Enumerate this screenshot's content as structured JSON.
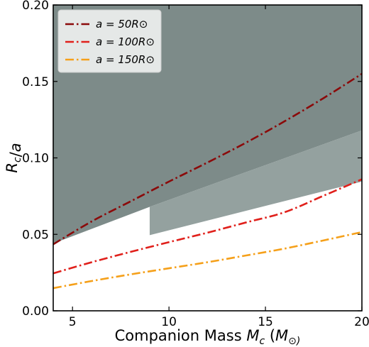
{
  "chart_data": {
    "type": "line",
    "xlabel": "Companion Mass M_c (M_⊙)",
    "ylabel": "R_c/a",
    "xlim": [
      4,
      20
    ],
    "ylim": [
      0,
      0.2
    ],
    "x_ticks": [
      5,
      10,
      15,
      20
    ],
    "x_tick_labels": [
      "5",
      "10",
      "15",
      "20"
    ],
    "y_ticks": [
      0,
      0.05,
      0.1,
      0.15,
      0.2
    ],
    "y_tick_labels": [
      "0.00",
      "0.05",
      "0.10",
      "0.15",
      "0.20"
    ],
    "legend_position": "top-left",
    "grid": false,
    "series": [
      {
        "name": "a = 50R_⊙",
        "legend_label": "a = 50R⊙",
        "color": "#8b0a0a",
        "style": "dash-dot",
        "x": [
          4,
          6,
          8,
          10,
          12,
          14,
          16,
          18,
          20
        ],
        "y": [
          0.0435,
          0.0585,
          0.0715,
          0.0845,
          0.097,
          0.11,
          0.124,
          0.139,
          0.155
        ]
      },
      {
        "name": "a = 100R_⊙",
        "legend_label": "a = 100R⊙",
        "color": "#e0201b",
        "style": "dash-dot",
        "x": [
          4,
          6,
          8,
          10,
          12,
          14,
          16,
          18,
          20
        ],
        "y": [
          0.0245,
          0.0318,
          0.0385,
          0.0449,
          0.0511,
          0.0578,
          0.0645,
          0.0752,
          0.086
        ]
      },
      {
        "name": "a = 150R_⊙",
        "legend_label": "a = 150R⊙",
        "color": "#f5a01a",
        "style": "dash-dot",
        "x": [
          4,
          6,
          8,
          10,
          12,
          14,
          16,
          18,
          20
        ],
        "y": [
          0.0148,
          0.0195,
          0.0238,
          0.0278,
          0.0318,
          0.0362,
          0.0407,
          0.046,
          0.0515
        ]
      }
    ],
    "shaded_regions": [
      {
        "name": "dark-region",
        "color": "#7d8b89",
        "x": [
          4,
          9,
          9,
          20,
          20,
          4
        ],
        "y": [
          0.044,
          0.068,
          0.068,
          0.118,
          0.2,
          0.2
        ]
      },
      {
        "name": "light-region",
        "color": "#94a19f",
        "x": [
          9,
          20,
          20,
          9
        ],
        "y": [
          0.068,
          0.118,
          0.0845,
          0.0495
        ]
      }
    ]
  }
}
